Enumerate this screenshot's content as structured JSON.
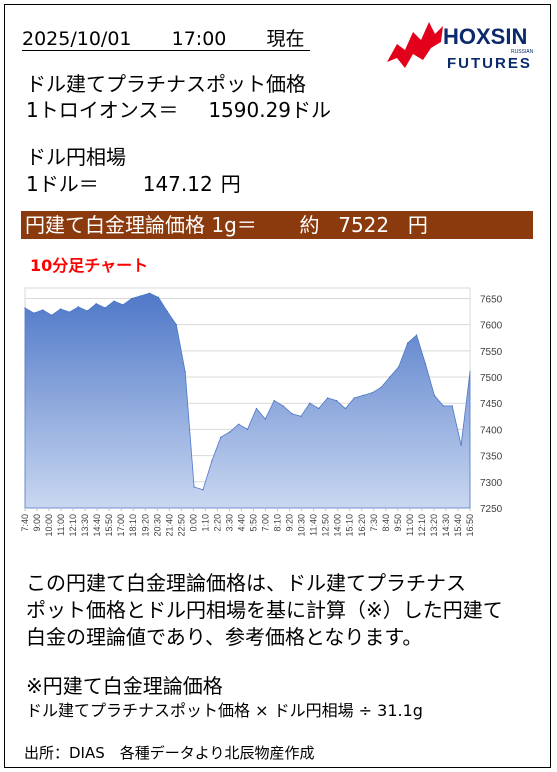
{
  "header": {
    "date": "2025/10/01",
    "time": "17:00",
    "now_label": "現在"
  },
  "logo": {
    "brand": "HOXSIN",
    "sub": "FUTURES",
    "small": "RUSSIAN",
    "colors": {
      "red": "#e3001b",
      "navy": "#0b2a6b"
    }
  },
  "platinum": {
    "title": "ドル建てプラチナスポット価格",
    "unit_label": "1トロイオンス＝",
    "value": "1590.29",
    "currency": "ドル"
  },
  "fx": {
    "title": "ドル円相場",
    "unit_label": "1ドル＝",
    "value": "147.12",
    "currency": "円"
  },
  "banner": {
    "label": "円建て白金理論価格 1g＝",
    "approx": "約",
    "value": "7522",
    "currency": "円",
    "color": "#8b3a0e"
  },
  "chart_title": "10分足チャート",
  "chart_data": {
    "type": "area",
    "x": [
      "7:40",
      "8:20",
      "9:00",
      "9:40",
      "10:20",
      "11:00",
      "11:40",
      "12:20",
      "13:00",
      "13:40",
      "14:20",
      "15:00",
      "15:40",
      "16:20",
      "17:00",
      "17:40",
      "18:20",
      "19:00",
      "19:40",
      "20:20",
      "21:00",
      "21:40",
      "22:20",
      "23:00",
      "23:40",
      "0:20",
      "1:00",
      "1:40",
      "2:20",
      "3:00",
      "3:40",
      "4:20",
      "5:00",
      "5:40",
      "6:20",
      "7:00",
      "7:40",
      "8:20",
      "9:00",
      "9:40",
      "10:20",
      "11:00",
      "11:40",
      "12:20",
      "13:00",
      "13:40",
      "14:20",
      "15:00",
      "15:40",
      "16:20",
      "16:50"
    ],
    "x_tick_labels": [
      "7:40",
      "9:00",
      "10:00",
      "11:00",
      "12:10",
      "13:30",
      "14:40",
      "15:50",
      "17:00",
      "18:10",
      "19:20",
      "20:30",
      "21:40",
      "22:50",
      "0:00",
      "1:10",
      "2:20",
      "3:30",
      "4:40",
      "5:50",
      "7:00",
      "8:10",
      "9:20",
      "10:30",
      "11:40",
      "12:50",
      "14:00",
      "15:10",
      "16:20",
      "7:30",
      "8:40",
      "9:50",
      "11:00",
      "12:10",
      "13:20",
      "14:30",
      "15:40",
      "16:50"
    ],
    "y_ticks": [
      7250,
      7300,
      7350,
      7400,
      7450,
      7500,
      7550,
      7600,
      7650
    ],
    "ylim": [
      7250,
      7670
    ],
    "values": [
      7632,
      7622,
      7628,
      7618,
      7630,
      7624,
      7634,
      7626,
      7640,
      7632,
      7645,
      7638,
      7650,
      7655,
      7660,
      7652,
      7625,
      7600,
      7510,
      7290,
      7285,
      7340,
      7385,
      7395,
      7410,
      7400,
      7440,
      7420,
      7455,
      7445,
      7430,
      7425,
      7450,
      7440,
      7460,
      7455,
      7440,
      7460,
      7465,
      7470,
      7480,
      7500,
      7520,
      7565,
      7580,
      7525,
      7465,
      7445,
      7445,
      7370,
      7510
    ],
    "series_color": "#6b8fd1",
    "grid": true,
    "y_axis_side": "right"
  },
  "explanation": {
    "lines": [
      "この円建て白金理論価格は、ドル建てプラチナス",
      "ポット価格とドル円相場を基に計算（※）した円建て",
      "白金の理論値であり、参考価格となります。"
    ]
  },
  "formula": {
    "title": "※円建て白金理論価格",
    "text": "ドル建てプラチナスポット価格 × ドル円相場 ÷ 31.1g"
  },
  "source": "出所：DIAS　各種データより北辰物産作成"
}
